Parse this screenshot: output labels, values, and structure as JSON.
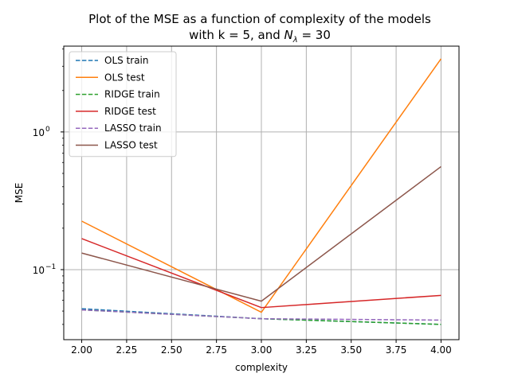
{
  "chart_data": {
    "type": "line",
    "title": "Plot of the MSE as a function of complexity of the models",
    "subtitle_prefix": "with k = 5, and ",
    "subtitle_symbol": "N",
    "subtitle_subscript": "λ",
    "subtitle_suffix": " = 30",
    "xlabel": "complexity",
    "ylabel": "MSE",
    "xscale": "linear",
    "yscale": "log",
    "xlim": [
      1.9,
      4.1
    ],
    "ylim": [
      0.031,
      4.2
    ],
    "grid": true,
    "legend_position": "upper-left",
    "x_ticks": [
      {
        "value": 2.0,
        "label": "2.00"
      },
      {
        "value": 2.25,
        "label": "2.25"
      },
      {
        "value": 2.5,
        "label": "2.50"
      },
      {
        "value": 2.75,
        "label": "2.75"
      },
      {
        "value": 3.0,
        "label": "3.00"
      },
      {
        "value": 3.25,
        "label": "3.25"
      },
      {
        "value": 3.5,
        "label": "3.50"
      },
      {
        "value": 3.75,
        "label": "3.75"
      },
      {
        "value": 4.0,
        "label": "4.00"
      }
    ],
    "y_ticks": [
      {
        "value": 0.1,
        "base": "10",
        "exp": "−1"
      },
      {
        "value": 1.0,
        "base": "10",
        "exp": "0"
      }
    ],
    "x": [
      2,
      3,
      4
    ],
    "series": [
      {
        "name": "OLS train",
        "values": [
          0.052,
          0.044,
          0.04
        ],
        "color": "#1f77b4",
        "dashed": true
      },
      {
        "name": "OLS test",
        "values": [
          0.225,
          0.049,
          3.4
        ],
        "color": "#ff7f0e",
        "dashed": false
      },
      {
        "name": "RIDGE train",
        "values": [
          0.051,
          0.044,
          0.04
        ],
        "color": "#2ca02c",
        "dashed": true
      },
      {
        "name": "RIDGE test",
        "values": [
          0.168,
          0.053,
          0.065
        ],
        "color": "#d62728",
        "dashed": false
      },
      {
        "name": "LASSO train",
        "values": [
          0.051,
          0.044,
          0.043
        ],
        "color": "#9467bd",
        "dashed": true
      },
      {
        "name": "LASSO test",
        "values": [
          0.132,
          0.059,
          0.56
        ],
        "color": "#8c564b",
        "dashed": false
      }
    ]
  }
}
